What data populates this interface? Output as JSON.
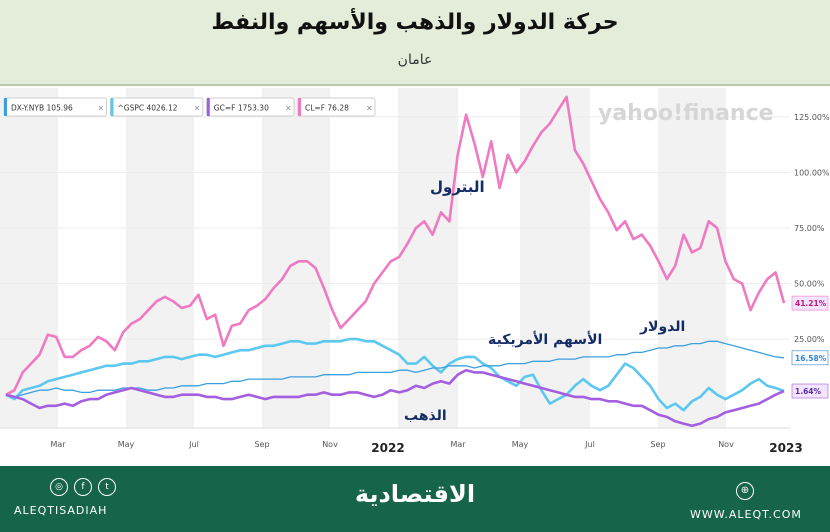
{
  "header": {
    "title": "حركة الدولار والذهب والأسهم والنفط",
    "subtitle": "عامان"
  },
  "chart_data": {
    "type": "line",
    "watermark": "yahoo!finance",
    "x_tick_labels": [
      "Mar",
      "May",
      "Jul",
      "Sep",
      "Nov",
      "2022",
      "Mar",
      "May",
      "Jul",
      "Sep",
      "Nov",
      "2023"
    ],
    "y_tick_labels": [
      "125.00%",
      "100.00%",
      "75.00%",
      "50.00%",
      "25.00%"
    ],
    "y_ticks": [
      125,
      100,
      75,
      50,
      25
    ],
    "ylim": [
      -15,
      138
    ],
    "legend": [
      {
        "label": "DX-Y.NYB 105.96",
        "color": "#3b9fe0"
      },
      {
        "label": "^GSPC 4026.12",
        "color": "#5cc8f0"
      },
      {
        "label": "GC=F 1753.30",
        "color": "#a35fe0"
      },
      {
        "label": "CL=F 76.28",
        "color": "#ef7ac2"
      }
    ],
    "annotations": [
      {
        "text": "البترول",
        "series": "CL=F"
      },
      {
        "text": "الأسهم الأمريكية",
        "series": "^GSPC"
      },
      {
        "text": "الدولار",
        "series": "DX-Y.NYB"
      },
      {
        "text": "الذهب",
        "series": "GC=F"
      }
    ],
    "end_labels": [
      {
        "text": "41.21%",
        "color": "#ef7ac2",
        "value": 41.21
      },
      {
        "text": "16.58%",
        "color": "#2f86d6",
        "value": 16.58
      },
      {
        "text": "1.64%",
        "color": "#a35fe0",
        "value": 1.64
      }
    ],
    "series": [
      {
        "name": "CL=F",
        "color": "#ef7ac2",
        "values": [
          0,
          2,
          10,
          14,
          18,
          27,
          26,
          17,
          17,
          20,
          22,
          26,
          24,
          20,
          28,
          32,
          34,
          38,
          42,
          44,
          42,
          39,
          40,
          45,
          34,
          36,
          22,
          31,
          32,
          38,
          40,
          43,
          48,
          52,
          58,
          60,
          60,
          57,
          48,
          38,
          30,
          34,
          38,
          42,
          50,
          55,
          60,
          62,
          68,
          75,
          78,
          72,
          82,
          78,
          108,
          126,
          113,
          98,
          114,
          93,
          108,
          100,
          105,
          112,
          118,
          122,
          128,
          134,
          110,
          104,
          96,
          88,
          82,
          74,
          78,
          70,
          72,
          67,
          60,
          52,
          58,
          72,
          64,
          66,
          78,
          75,
          60,
          52,
          50,
          38,
          46,
          52,
          55,
          41.21
        ]
      },
      {
        "name": "^GSPC",
        "color": "#5cc8f0",
        "values": [
          0,
          -2,
          2,
          3,
          4,
          6,
          7,
          8,
          9,
          10,
          11,
          12,
          13,
          13,
          14,
          14,
          15,
          15,
          16,
          17,
          17,
          16,
          17,
          18,
          18,
          17,
          18,
          19,
          20,
          20,
          21,
          22,
          22,
          23,
          24,
          24,
          23,
          23,
          24,
          24,
          24,
          25,
          25,
          24,
          24,
          22,
          20,
          18,
          14,
          14,
          17,
          13,
          10,
          14,
          16,
          17,
          17,
          14,
          12,
          8,
          6,
          4,
          8,
          9,
          2,
          -4,
          -2,
          0,
          4,
          7,
          4,
          2,
          4,
          9,
          14,
          12,
          8,
          4,
          -2,
          -6,
          -4,
          -7,
          -3,
          -1,
          3,
          0,
          -2,
          0,
          2,
          5,
          7,
          4,
          3,
          1.64
        ]
      },
      {
        "name": "DX-Y.NYB",
        "color": "#3b9fe0",
        "values": [
          0,
          -1,
          0,
          1,
          2,
          2,
          3,
          2,
          2,
          1,
          1,
          2,
          2,
          2,
          3,
          3,
          3,
          2,
          2,
          3,
          3,
          4,
          4,
          4,
          5,
          5,
          5,
          6,
          6,
          7,
          7,
          7,
          7,
          7,
          8,
          8,
          8,
          8,
          9,
          9,
          9,
          9,
          10,
          10,
          10,
          10,
          10,
          11,
          11,
          10,
          11,
          12,
          12,
          13,
          13,
          13,
          12,
          13,
          13,
          13,
          14,
          14,
          14,
          15,
          15,
          15,
          16,
          16,
          16,
          17,
          17,
          17,
          17,
          18,
          18,
          19,
          19,
          20,
          21,
          21,
          22,
          22,
          23,
          23,
          24,
          24,
          23,
          22,
          21,
          20,
          19,
          18,
          17,
          16.58
        ]
      },
      {
        "name": "GC=F",
        "color": "#a35fe0",
        "values": [
          0,
          -1,
          -2,
          -4,
          -6,
          -5,
          -5,
          -4,
          -5,
          -3,
          -2,
          -2,
          0,
          1,
          2,
          3,
          2,
          1,
          0,
          -1,
          -1,
          0,
          0,
          0,
          -1,
          -1,
          -2,
          -2,
          -1,
          0,
          -1,
          -2,
          -1,
          -1,
          -1,
          -1,
          0,
          0,
          1,
          0,
          0,
          1,
          1,
          0,
          -1,
          0,
          2,
          1,
          2,
          4,
          3,
          5,
          6,
          5,
          9,
          11,
          10,
          10,
          9,
          8,
          7,
          6,
          5,
          4,
          3,
          2,
          1,
          0,
          -1,
          -1,
          -2,
          -2,
          -3,
          -3,
          -4,
          -5,
          -5,
          -7,
          -9,
          -10,
          -12,
          -13,
          -14,
          -13,
          -11,
          -10,
          -8,
          -7,
          -6,
          -5,
          -4,
          -2,
          0,
          1.64
        ]
      }
    ]
  },
  "footer": {
    "brand": "الاقتصادية",
    "handle": "ALEQTISADIAH",
    "website": "WWW.ALEQT.COM"
  }
}
